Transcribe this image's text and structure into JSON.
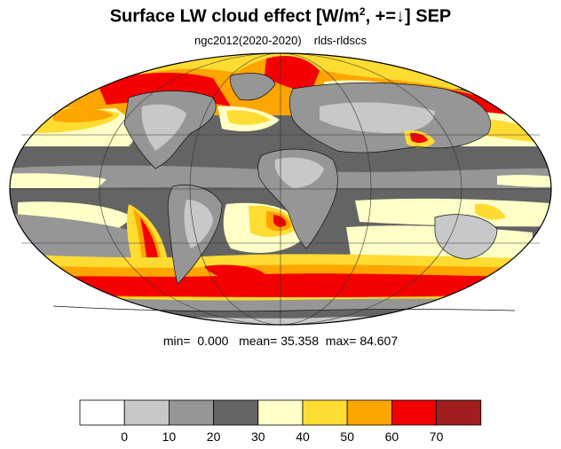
{
  "title": {
    "prefix": "Surface LW cloud effect [W/m",
    "sup": "2",
    "suffix": ", +=↓]  SEP"
  },
  "subtitle": {
    "left": "ngc2012(2020-2020)",
    "right": "rlds-rldscs"
  },
  "stats": {
    "min_label": "min=",
    "min_value": "0.000",
    "mean_label": "mean=",
    "mean_value": "35.358",
    "max_label": "max=",
    "max_value": "84.607"
  },
  "colorbar": {
    "colors": [
      "#ffffff",
      "#c8c8c8",
      "#969696",
      "#646464",
      "#ffffc8",
      "#ffdc32",
      "#ffa500",
      "#f50000",
      "#a01e1e"
    ],
    "tick_labels": [
      "0",
      "10",
      "20",
      "30",
      "40",
      "50",
      "60",
      "70"
    ]
  }
}
